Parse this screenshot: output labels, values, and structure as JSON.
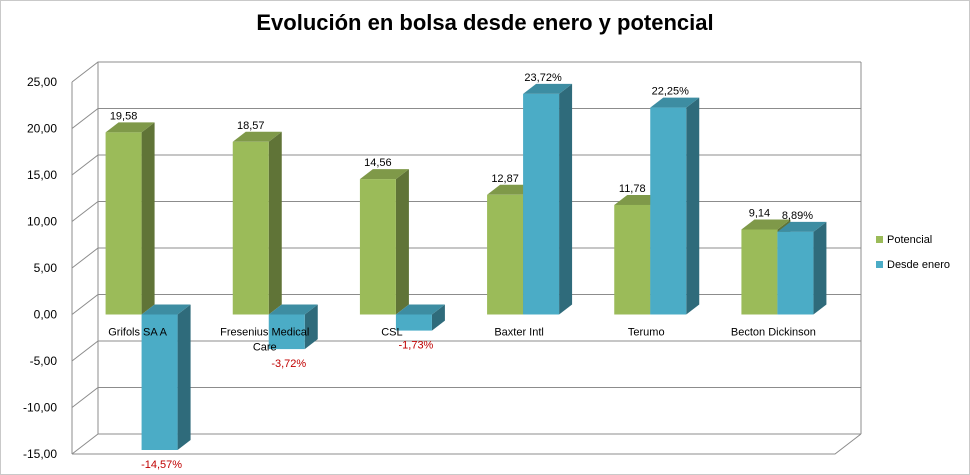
{
  "chart_data": {
    "type": "bar",
    "title": "Evolución en bolsa desde enero y potencial",
    "categories": [
      [
        "Grifols SA A"
      ],
      [
        "Fresenius Medical",
        "Care"
      ],
      [
        "CSL"
      ],
      [
        "Baxter Intl"
      ],
      [
        "Terumo"
      ],
      [
        "Becton Dickinson"
      ]
    ],
    "series": [
      {
        "name": "Potencial",
        "values": [
          19.58,
          18.57,
          14.56,
          12.87,
          11.78,
          9.14
        ],
        "labels": [
          "19,58",
          "18,57",
          "14,56",
          "12,87",
          "11,78",
          "9,14"
        ],
        "color": "#9bbb59"
      },
      {
        "name": "Desde enero",
        "values": [
          -14.57,
          -3.72,
          -1.73,
          23.72,
          22.25,
          8.89
        ],
        "labels": [
          "-14,57%",
          "-3,72%",
          "-1,73%",
          "23,72%",
          "22,25%",
          "8,89%"
        ],
        "color": "#4bacc6"
      }
    ],
    "yticks": [
      "25,00",
      "20,00",
      "15,00",
      "10,00",
      "5,00",
      "0,00",
      "-5,00",
      "-10,00",
      "-15,00"
    ],
    "ylim": [
      -15,
      25
    ],
    "xlabel": "",
    "ylabel": "",
    "legend_position": "right"
  }
}
